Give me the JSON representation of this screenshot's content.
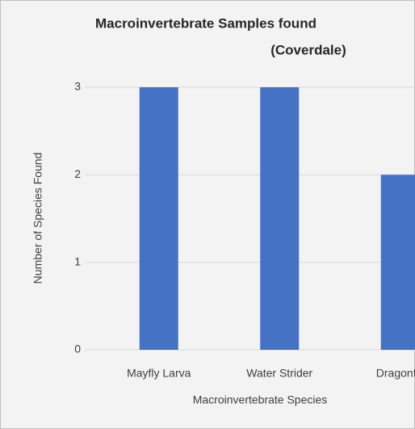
{
  "chart_data": {
    "type": "bar",
    "title": "Macroinvertebrate Samples found",
    "subtitle": "(Coverdale)",
    "x_label": "Macroinvertebrate Species",
    "y_label": "Number of Species Found",
    "categories": [
      "Mayfly Larva",
      "Water Strider",
      "Dragonfly"
    ],
    "values": [
      3,
      3,
      2
    ],
    "color": "#4472c4",
    "ylim": [
      0,
      3
    ],
    "yticks": [
      0,
      1,
      2,
      3
    ],
    "grid": true
  }
}
